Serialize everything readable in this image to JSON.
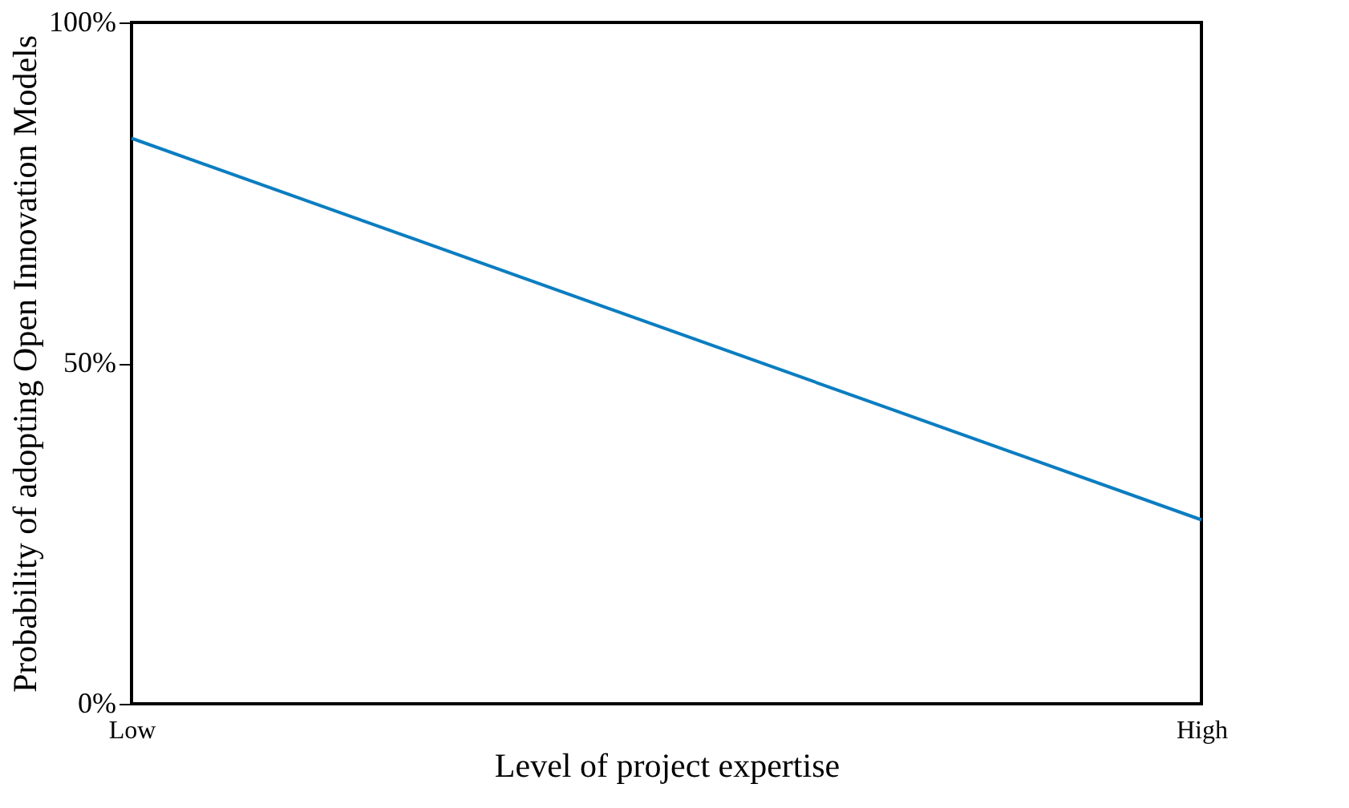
{
  "chart_data": {
    "type": "line",
    "xlabel": "Level of project expertise",
    "ylabel": "Probability of adopting Open Innovation Models",
    "categories": [
      "Low",
      "High"
    ],
    "series": [
      {
        "color": "#0b7dc1",
        "values": [
          83,
          27
        ]
      }
    ],
    "ylim": [
      0,
      100
    ],
    "yticks": [
      {
        "value": 0,
        "label": "0%"
      },
      {
        "value": 50,
        "label": "50%"
      },
      {
        "value": 100,
        "label": "100%"
      }
    ],
    "grid": false,
    "legend": false,
    "marker": "none",
    "line_style": "solid"
  }
}
